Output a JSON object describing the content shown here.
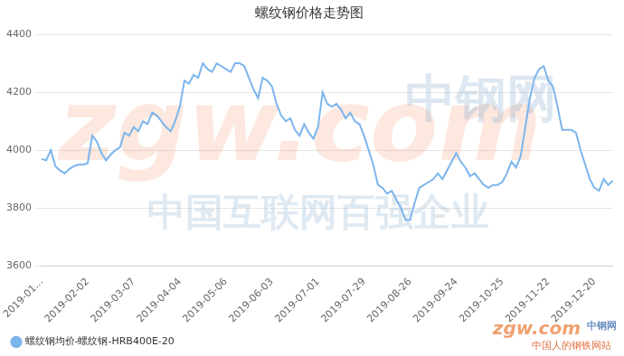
{
  "chart_data": {
    "type": "line",
    "title": "螺纹钢价格走势图",
    "categories": [
      "2019-01...",
      null,
      null,
      null,
      null,
      null,
      null,
      null,
      null,
      null,
      "2019-02-02",
      null,
      null,
      null,
      null,
      null,
      null,
      null,
      null,
      null,
      "2019-03-07",
      null,
      null,
      null,
      null,
      null,
      null,
      null,
      null,
      null,
      "2019-04-04",
      null,
      null,
      null,
      null,
      null,
      null,
      null,
      null,
      null,
      "2019-05-06",
      null,
      null,
      null,
      null,
      null,
      null,
      null,
      null,
      null,
      "2019-06-03",
      null,
      null,
      null,
      null,
      null,
      null,
      null,
      null,
      null,
      "2019-07-01",
      null,
      null,
      null,
      null,
      null,
      null,
      null,
      null,
      null,
      "2019-07-29",
      null,
      null,
      null,
      null,
      null,
      null,
      null,
      null,
      null,
      "2019-08-26",
      null,
      null,
      null,
      null,
      null,
      null,
      null,
      null,
      null,
      "2019-09-24",
      null,
      null,
      null,
      null,
      null,
      null,
      null,
      null,
      null,
      "2019-10-25",
      null,
      null,
      null,
      null,
      null,
      null,
      null,
      null,
      null,
      "2019-11-22",
      null,
      null,
      null,
      null,
      null,
      null,
      null,
      null,
      null,
      "2019-12-20",
      null,
      null,
      null,
      null
    ],
    "series": [
      {
        "name": "螺纹钢均价-螺纹钢-HRB400E-20",
        "color": "#7cb5ec",
        "values": [
          3970,
          3965,
          4000,
          3945,
          3930,
          3920,
          3935,
          3945,
          3950,
          3950,
          3955,
          4050,
          4030,
          3990,
          3965,
          3985,
          4000,
          4010,
          4060,
          4050,
          4080,
          4065,
          4100,
          4090,
          4130,
          4120,
          4100,
          4080,
          4065,
          4100,
          4150,
          4240,
          4230,
          4260,
          4250,
          4300,
          4280,
          4270,
          4300,
          4290,
          4280,
          4270,
          4300,
          4300,
          4290,
          4250,
          4210,
          4180,
          4250,
          4240,
          4220,
          4160,
          4120,
          4100,
          4110,
          4070,
          4050,
          4090,
          4060,
          4040,
          4080,
          4200,
          4160,
          4150,
          4160,
          4140,
          4110,
          4130,
          4100,
          4090,
          4050,
          4000,
          3950,
          3880,
          3870,
          3850,
          3860,
          3830,
          3800,
          3760,
          3760,
          3820,
          3870,
          3880,
          3890,
          3900,
          3920,
          3900,
          3930,
          3960,
          3990,
          3960,
          3940,
          3910,
          3920,
          3900,
          3880,
          3870,
          3880,
          3880,
          3890,
          3920,
          3960,
          3940,
          3980,
          4080,
          4180,
          4250,
          4280,
          4290,
          4240,
          4220,
          4150,
          4070,
          4070,
          4070,
          4060,
          4000,
          3950,
          3900,
          3870,
          3860,
          3900,
          3880,
          3895
        ]
      }
    ],
    "ylim": [
      3600,
      4400
    ],
    "yticks": [
      3600,
      3800,
      4000,
      4200,
      4400
    ],
    "grid": true,
    "legend": "bottom-left",
    "marker": "none",
    "annotations": [
      "zgw.com",
      "中钢网",
      "中国互联网百强企业",
      "中国人的钢铁网站"
    ]
  }
}
